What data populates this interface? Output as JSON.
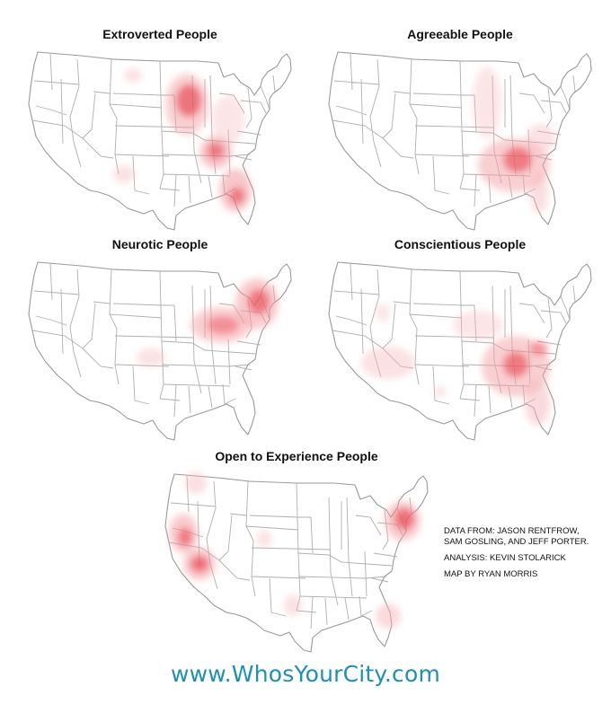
{
  "maps": [
    {
      "title": "Extroverted People",
      "hotspots": [
        {
          "region": "Wisconsin / Illinois",
          "intensity": 0.9
        },
        {
          "region": "Kentucky / Tennessee",
          "intensity": 0.75
        },
        {
          "region": "Florida",
          "intensity": 0.8
        },
        {
          "region": "Ohio / Indiana",
          "intensity": 0.4
        },
        {
          "region": "Montana",
          "intensity": 0.25
        },
        {
          "region": "West Texas",
          "intensity": 0.25
        }
      ]
    },
    {
      "title": "Agreeable People",
      "hotspots": [
        {
          "region": "Georgia / Carolinas",
          "intensity": 0.9
        },
        {
          "region": "Mississippi / Alabama",
          "intensity": 0.5
        },
        {
          "region": "Minnesota / Great Lakes",
          "intensity": 0.3
        },
        {
          "region": "Florida",
          "intensity": 0.35
        }
      ]
    },
    {
      "title": "Neurotic People",
      "hotspots": [
        {
          "region": "New York / Pennsylvania / New Jersey",
          "intensity": 0.9
        },
        {
          "region": "West Virginia / Ohio",
          "intensity": 0.8
        },
        {
          "region": "Oklahoma",
          "intensity": 0.3
        }
      ]
    },
    {
      "title": "Conscientious People",
      "hotspots": [
        {
          "region": "Georgia / South Carolina",
          "intensity": 0.85
        },
        {
          "region": "North Carolina",
          "intensity": 0.7
        },
        {
          "region": "Florida",
          "intensity": 0.45
        },
        {
          "region": "Texas / New Mexico",
          "intensity": 0.35
        },
        {
          "region": "Missouri / Kentucky",
          "intensity": 0.35
        },
        {
          "region": "Wyoming",
          "intensity": 0.2
        }
      ]
    },
    {
      "title": "Open to Experience People",
      "hotspots": [
        {
          "region": "California (Bay Area)",
          "intensity": 0.85
        },
        {
          "region": "Southern California",
          "intensity": 0.85
        },
        {
          "region": "New York / Massachusetts",
          "intensity": 0.9
        },
        {
          "region": "Washington",
          "intensity": 0.4
        },
        {
          "region": "Colorado",
          "intensity": 0.3
        },
        {
          "region": "South Texas",
          "intensity": 0.3
        },
        {
          "region": "South Florida",
          "intensity": 0.5
        }
      ]
    }
  ],
  "credits": {
    "data_from_line1": "DATA FROM: JASON RENTFROW,",
    "data_from_line2": "SAM GOSLING, AND JEFF PORTER.",
    "analysis": "ANALYSIS: KEVIN STOLARICK",
    "map_by": "MAP BY RYAN MORRIS"
  },
  "footer": {
    "site": "www.WhosYourCity.com"
  },
  "colors": {
    "hotspot": "#e8424f",
    "state_border": "#9a9a9a",
    "link": "#1f8fb4"
  }
}
